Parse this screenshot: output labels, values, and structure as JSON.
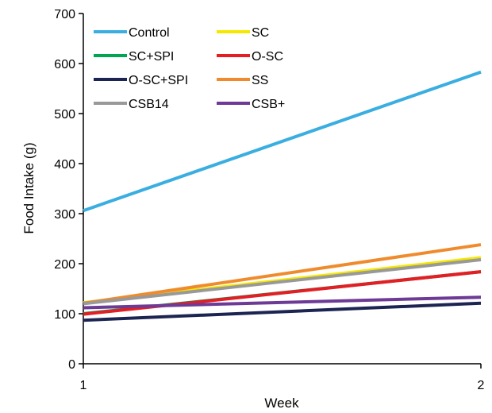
{
  "chart_data": {
    "type": "line",
    "title": "",
    "xlabel": "Week",
    "ylabel": "Food Intake (g)",
    "x": [
      1,
      2
    ],
    "xticks": [
      "1",
      "2"
    ],
    "ylim": [
      0,
      700
    ],
    "yticks": [
      0,
      100,
      200,
      300,
      400,
      500,
      600,
      700
    ],
    "grid": false,
    "legend_position": "top-left",
    "series": [
      {
        "name": "Control",
        "values": [
          306,
          583
        ],
        "color": "#3aaee0"
      },
      {
        "name": "SC",
        "values": [
          122,
          212
        ],
        "color": "#f5e800"
      },
      {
        "name": "SC+SPI",
        "values": [
          100,
          184
        ],
        "color": "#00a651"
      },
      {
        "name": "O-SC",
        "values": [
          99,
          184
        ],
        "color": "#e31e24"
      },
      {
        "name": "O-SC+SPI",
        "values": [
          87,
          121
        ],
        "color": "#1c2452"
      },
      {
        "name": "SS",
        "values": [
          121,
          238
        ],
        "color": "#ef8b2c"
      },
      {
        "name": "CSB14",
        "values": [
          120,
          208
        ],
        "color": "#999999"
      },
      {
        "name": "CSB+",
        "values": [
          112,
          133
        ],
        "color": "#6d3a96"
      }
    ]
  }
}
